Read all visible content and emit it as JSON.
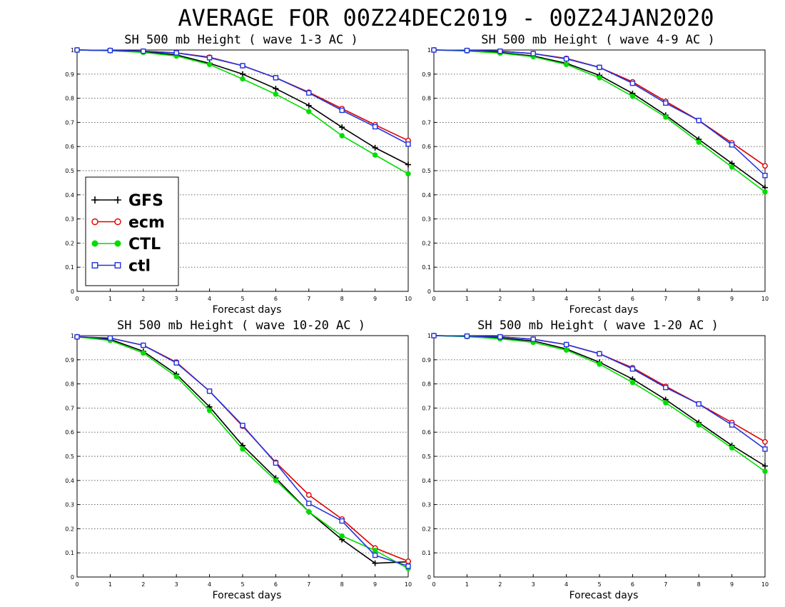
{
  "title": "AVERAGE FOR 00Z24DEC2019 - 00Z24JAN2020",
  "colors": {
    "GFS": "#000000",
    "ecm": "#dd0000",
    "CTL": "#00dd00",
    "ctl": "#2233dd",
    "grid": "#555555"
  },
  "legend": {
    "placement": "lower-left of first panel",
    "entries": [
      {
        "label": "GFS",
        "marker": "plus"
      },
      {
        "label": "ecm",
        "marker": "open-circle"
      },
      {
        "label": "CTL",
        "marker": "filled-circle"
      },
      {
        "label": "ctl",
        "marker": "open-square"
      }
    ]
  },
  "chart_data": [
    {
      "type": "line",
      "title": "SH 500 mb Height ( wave 1-3 AC )",
      "xlabel": "Forecast days",
      "ylabel": "",
      "xlim": [
        0,
        10
      ],
      "ylim": [
        0,
        1
      ],
      "x": [
        0,
        1,
        2,
        3,
        4,
        5,
        6,
        7,
        8,
        9,
        10
      ],
      "xticks": [
        "0",
        "1",
        "2",
        "3",
        "4",
        "5",
        "6",
        "7",
        "8",
        "9",
        "10"
      ],
      "yticks": [
        "0",
        "0.1",
        "0.2",
        "0.3",
        "0.4",
        "0.5",
        "0.6",
        "0.7",
        "0.8",
        "0.9",
        "1"
      ],
      "grid": "horizontal dotted",
      "series": [
        {
          "name": "GFS",
          "values": [
            1.0,
            0.998,
            0.993,
            0.98,
            0.945,
            0.9,
            0.84,
            0.77,
            0.68,
            0.595,
            0.525
          ]
        },
        {
          "name": "ecm",
          "values": [
            1.0,
            0.998,
            0.995,
            0.988,
            0.97,
            0.935,
            0.885,
            0.825,
            0.757,
            0.69,
            0.625
          ]
        },
        {
          "name": "CTL",
          "values": [
            1.0,
            0.997,
            0.99,
            0.975,
            0.94,
            0.88,
            0.817,
            0.745,
            0.645,
            0.565,
            0.487
          ]
        },
        {
          "name": "ctl",
          "values": [
            1.0,
            0.998,
            0.995,
            0.988,
            0.968,
            0.935,
            0.885,
            0.822,
            0.75,
            0.682,
            0.61
          ]
        }
      ]
    },
    {
      "type": "line",
      "title": "SH 500 mb Height ( wave 4-9 AC )",
      "xlabel": "Forecast days",
      "ylabel": "",
      "xlim": [
        0,
        10
      ],
      "ylim": [
        0,
        1
      ],
      "x": [
        0,
        1,
        2,
        3,
        4,
        5,
        6,
        7,
        8,
        9,
        10
      ],
      "xticks": [
        "0",
        "1",
        "2",
        "3",
        "4",
        "5",
        "6",
        "7",
        "8",
        "9",
        "10"
      ],
      "yticks": [
        "0",
        "0.1",
        "0.2",
        "0.3",
        "0.4",
        "0.5",
        "0.6",
        "0.7",
        "0.8",
        "0.9",
        "1"
      ],
      "grid": "horizontal dotted",
      "series": [
        {
          "name": "GFS",
          "values": [
            1.0,
            0.997,
            0.99,
            0.975,
            0.945,
            0.895,
            0.82,
            0.73,
            0.63,
            0.53,
            0.43
          ]
        },
        {
          "name": "ecm",
          "values": [
            1.0,
            0.998,
            0.995,
            0.985,
            0.965,
            0.928,
            0.868,
            0.787,
            0.708,
            0.615,
            0.52
          ]
        },
        {
          "name": "CTL",
          "values": [
            1.0,
            0.996,
            0.987,
            0.972,
            0.94,
            0.885,
            0.808,
            0.722,
            0.618,
            0.515,
            0.412
          ]
        },
        {
          "name": "ctl",
          "values": [
            1.0,
            0.998,
            0.995,
            0.985,
            0.963,
            0.928,
            0.862,
            0.78,
            0.708,
            0.607,
            0.48
          ]
        }
      ]
    },
    {
      "type": "line",
      "title": "SH 500 mb Height ( wave 10-20 AC )",
      "xlabel": "Forecast days",
      "ylabel": "",
      "xlim": [
        0,
        10
      ],
      "ylim": [
        0,
        1
      ],
      "x": [
        0,
        1,
        2,
        3,
        4,
        5,
        6,
        7,
        8,
        9,
        10
      ],
      "xticks": [
        "0",
        "1",
        "2",
        "3",
        "4",
        "5",
        "6",
        "7",
        "8",
        "9",
        "10"
      ],
      "yticks": [
        "0",
        "0.1",
        "0.2",
        "0.3",
        "0.4",
        "0.5",
        "0.6",
        "0.7",
        "0.8",
        "0.9",
        "1"
      ],
      "grid": "horizontal dotted",
      "series": [
        {
          "name": "GFS",
          "values": [
            0.995,
            0.985,
            0.935,
            0.84,
            0.705,
            0.545,
            0.41,
            0.27,
            0.155,
            0.057,
            0.063
          ]
        },
        {
          "name": "ecm",
          "values": [
            0.995,
            0.99,
            0.96,
            0.89,
            0.77,
            0.625,
            0.475,
            0.34,
            0.24,
            0.12,
            0.065
          ]
        },
        {
          "name": "CTL",
          "values": [
            0.995,
            0.98,
            0.928,
            0.83,
            0.69,
            0.53,
            0.4,
            0.27,
            0.17,
            0.11,
            0.035
          ]
        },
        {
          "name": "ctl",
          "values": [
            0.995,
            0.99,
            0.96,
            0.887,
            0.77,
            0.628,
            0.472,
            0.305,
            0.232,
            0.09,
            0.045
          ]
        }
      ]
    },
    {
      "type": "line",
      "title": "SH 500 mb Height ( wave 1-20 AC )",
      "xlabel": "Forecast days",
      "ylabel": "",
      "xlim": [
        0,
        10
      ],
      "ylim": [
        0,
        1
      ],
      "x": [
        0,
        1,
        2,
        3,
        4,
        5,
        6,
        7,
        8,
        9,
        10
      ],
      "xticks": [
        "0",
        "1",
        "2",
        "3",
        "4",
        "5",
        "6",
        "7",
        "8",
        "9",
        "10"
      ],
      "yticks": [
        "0",
        "0.1",
        "0.2",
        "0.3",
        "0.4",
        "0.5",
        "0.6",
        "0.7",
        "0.8",
        "0.9",
        "1"
      ],
      "grid": "horizontal dotted",
      "series": [
        {
          "name": "GFS",
          "values": [
            1.0,
            0.997,
            0.99,
            0.978,
            0.945,
            0.89,
            0.82,
            0.735,
            0.64,
            0.545,
            0.46
          ]
        },
        {
          "name": "ecm",
          "values": [
            1.0,
            0.998,
            0.995,
            0.985,
            0.963,
            0.925,
            0.867,
            0.79,
            0.717,
            0.64,
            0.56
          ]
        },
        {
          "name": "CTL",
          "values": [
            1.0,
            0.996,
            0.987,
            0.972,
            0.94,
            0.882,
            0.806,
            0.722,
            0.63,
            0.535,
            0.438
          ]
        },
        {
          "name": "ctl",
          "values": [
            1.0,
            0.998,
            0.995,
            0.985,
            0.963,
            0.925,
            0.862,
            0.785,
            0.717,
            0.63,
            0.53
          ]
        }
      ]
    }
  ]
}
